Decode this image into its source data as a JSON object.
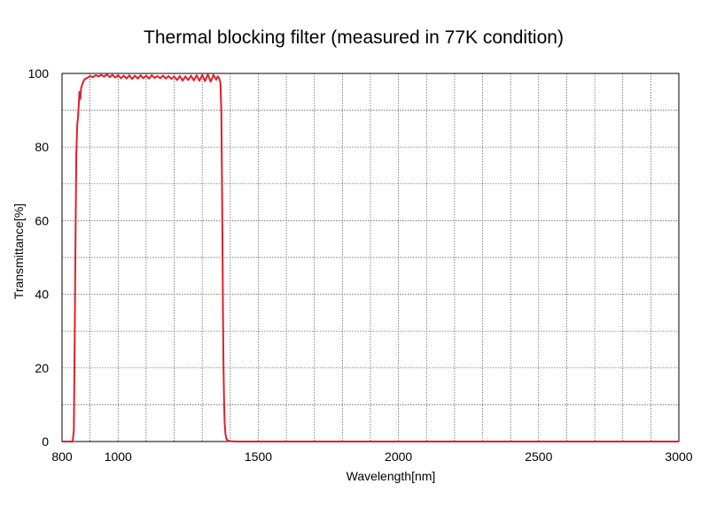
{
  "chart_data": {
    "type": "line",
    "title": "Thermal blocking filter (measured in 77K condition)",
    "xlabel": "Wavelength[nm]",
    "ylabel": "Transmittance[%]",
    "xlim": [
      800,
      3000
    ],
    "ylim": [
      0,
      100
    ],
    "x_ticks": [
      800,
      1000,
      1500,
      2000,
      2500,
      3000
    ],
    "y_ticks": [
      0,
      20,
      40,
      60,
      80,
      100
    ],
    "grid": "dotted, every 100 nm horizontally and every 10% vertically",
    "line_color": "#e0202a",
    "series": [
      {
        "points": [
          [
            800,
            0
          ],
          [
            838,
            0
          ],
          [
            842,
            3
          ],
          [
            845,
            25
          ],
          [
            848,
            55
          ],
          [
            851,
            78
          ],
          [
            854,
            86
          ],
          [
            857,
            88
          ],
          [
            860,
            92
          ],
          [
            862,
            95
          ],
          [
            865,
            93
          ],
          [
            868,
            96
          ],
          [
            872,
            97
          ],
          [
            877,
            98
          ],
          [
            882,
            98.5
          ],
          [
            890,
            98.8
          ],
          [
            900,
            99.3
          ],
          [
            910,
            99.0
          ],
          [
            920,
            99.5
          ],
          [
            930,
            99.2
          ],
          [
            940,
            99.6
          ],
          [
            950,
            99.1
          ],
          [
            960,
            99.7
          ],
          [
            970,
            99.0
          ],
          [
            980,
            99.6
          ],
          [
            990,
            98.9
          ],
          [
            1000,
            99.5
          ],
          [
            1010,
            98.7
          ],
          [
            1020,
            99.4
          ],
          [
            1030,
            98.6
          ],
          [
            1040,
            99.5
          ],
          [
            1050,
            98.5
          ],
          [
            1060,
            99.4
          ],
          [
            1070,
            98.6
          ],
          [
            1080,
            99.5
          ],
          [
            1090,
            98.7
          ],
          [
            1100,
            99.4
          ],
          [
            1110,
            98.6
          ],
          [
            1120,
            99.5
          ],
          [
            1130,
            98.8
          ],
          [
            1140,
            99.3
          ],
          [
            1150,
            98.7
          ],
          [
            1160,
            99.4
          ],
          [
            1170,
            98.6
          ],
          [
            1180,
            99.3
          ],
          [
            1190,
            98.5
          ],
          [
            1200,
            99.2
          ],
          [
            1210,
            98.2
          ],
          [
            1220,
            99.3
          ],
          [
            1230,
            98.0
          ],
          [
            1240,
            99.2
          ],
          [
            1250,
            98.2
          ],
          [
            1260,
            99.4
          ],
          [
            1270,
            98.1
          ],
          [
            1280,
            99.5
          ],
          [
            1290,
            98.0
          ],
          [
            1300,
            99.6
          ],
          [
            1310,
            97.9
          ],
          [
            1320,
            99.7
          ],
          [
            1330,
            97.8
          ],
          [
            1340,
            99.6
          ],
          [
            1350,
            98.3
          ],
          [
            1355,
            99.2
          ],
          [
            1360,
            98.7
          ],
          [
            1365,
            97.5
          ],
          [
            1368,
            90
          ],
          [
            1370,
            75
          ],
          [
            1372,
            55
          ],
          [
            1374,
            35
          ],
          [
            1376,
            20
          ],
          [
            1378,
            10
          ],
          [
            1380,
            5
          ],
          [
            1383,
            2
          ],
          [
            1386,
            0.8
          ],
          [
            1390,
            0.3
          ],
          [
            1400,
            0.1
          ],
          [
            1420,
            0
          ],
          [
            3000,
            0
          ]
        ]
      }
    ]
  }
}
